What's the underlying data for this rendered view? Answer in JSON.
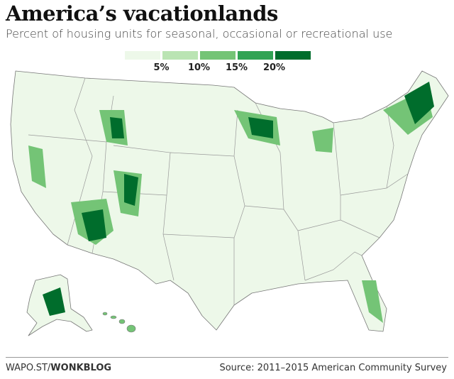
{
  "header": {
    "title": "America’s vacationlands",
    "subtitle": "Percent of housing units for seasonal, occasional or recreational use"
  },
  "legend": {
    "colors": [
      "#edf8e9",
      "#bae4b3",
      "#74c476",
      "#31a354",
      "#006d2c"
    ],
    "labels": [
      "5%",
      "10%",
      "15%",
      "20%"
    ]
  },
  "footer": {
    "site": "WAPO.ST/",
    "section": "WONKBLOG",
    "source": "Source: 2011–2015 American Community Survey"
  }
}
